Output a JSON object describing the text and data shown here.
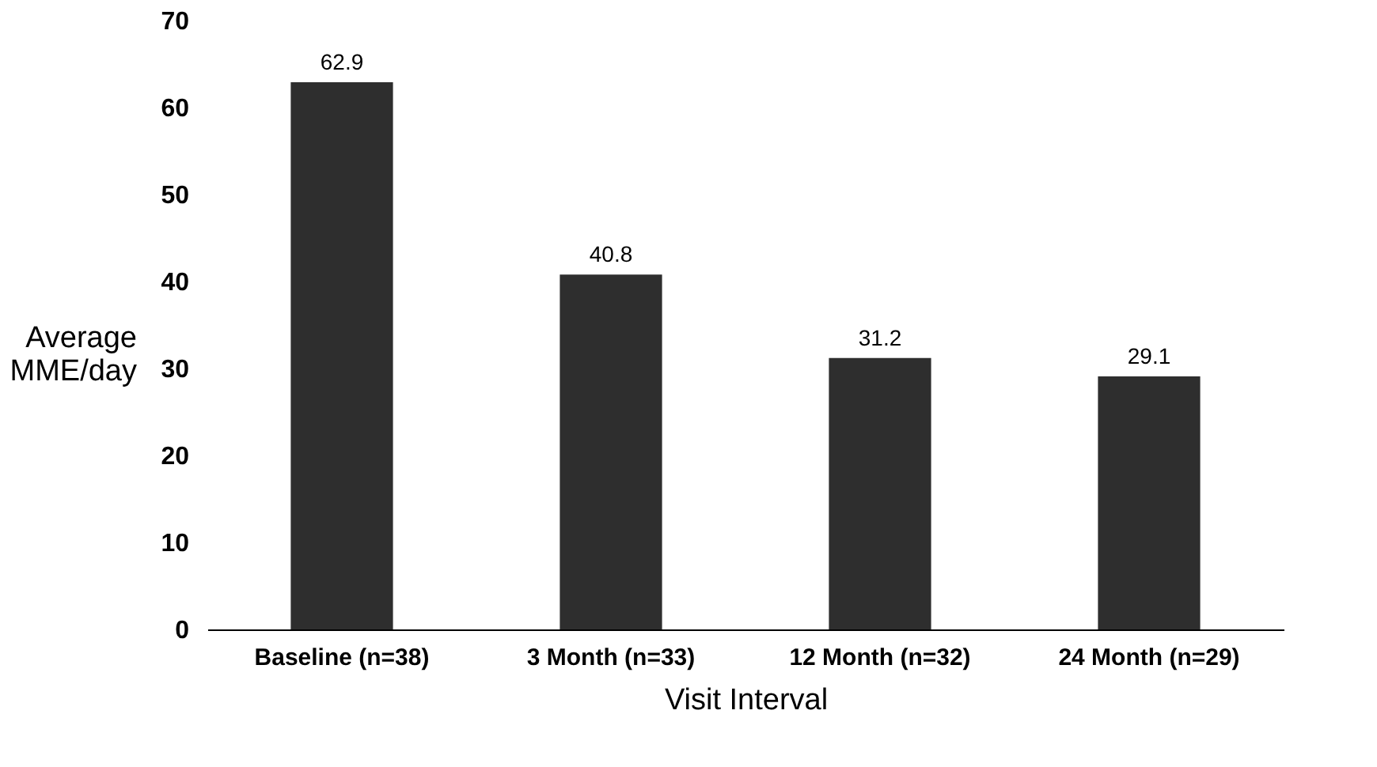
{
  "chart_data": {
    "type": "bar",
    "categories": [
      "Baseline (n=38)",
      "3 Month (n=33)",
      "12 Month (n=32)",
      "24 Month (n=29)"
    ],
    "values": [
      62.9,
      40.8,
      31.2,
      29.1
    ],
    "color": "#2e2e2e",
    "xlabel": "Visit Interval",
    "ylabel": "Average MME/day",
    "ylim": [
      0,
      70
    ],
    "yticks": [
      0,
      10,
      20,
      30,
      40,
      50,
      60,
      70
    ],
    "data_labels": true,
    "grid": false
  }
}
